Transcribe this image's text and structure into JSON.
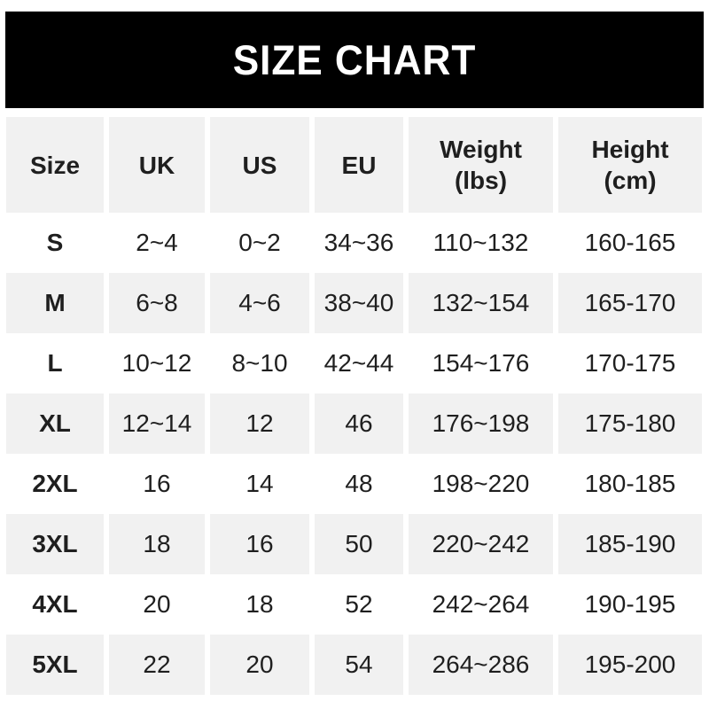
{
  "title_bar": {
    "title": "SIZE CHART"
  },
  "colors": {
    "title_bar_bg": "#000000",
    "title_text": "#ffffff",
    "stripe_bg": "#f1f1f1",
    "text": "#1f1f1f",
    "page_bg": "#ffffff"
  },
  "table": {
    "headers": [
      {
        "line1": "Size",
        "line2": ""
      },
      {
        "line1": "UK",
        "line2": ""
      },
      {
        "line1": "US",
        "line2": ""
      },
      {
        "line1": "EU",
        "line2": ""
      },
      {
        "line1": "Weight",
        "line2": "(lbs)"
      },
      {
        "line1": "Height",
        "line2": "(cm)"
      }
    ]
  },
  "chart_data": {
    "type": "table",
    "title": "SIZE CHART",
    "columns": [
      "Size",
      "UK",
      "US",
      "EU",
      "Weight (lbs)",
      "Height (cm)"
    ],
    "rows": [
      [
        "S",
        "2~4",
        "0~2",
        "34~36",
        "110~132",
        "160-165"
      ],
      [
        "M",
        "6~8",
        "4~6",
        "38~40",
        "132~154",
        "165-170"
      ],
      [
        "L",
        "10~12",
        "8~10",
        "42~44",
        "154~176",
        "170-175"
      ],
      [
        "XL",
        "12~14",
        "12",
        "46",
        "176~198",
        "175-180"
      ],
      [
        "2XL",
        "16",
        "14",
        "48",
        "198~220",
        "180-185"
      ],
      [
        "3XL",
        "18",
        "16",
        "50",
        "220~242",
        "185-190"
      ],
      [
        "4XL",
        "20",
        "18",
        "52",
        "242~264",
        "190-195"
      ],
      [
        "5XL",
        "22",
        "20",
        "54",
        "264~286",
        "195-200"
      ]
    ]
  }
}
